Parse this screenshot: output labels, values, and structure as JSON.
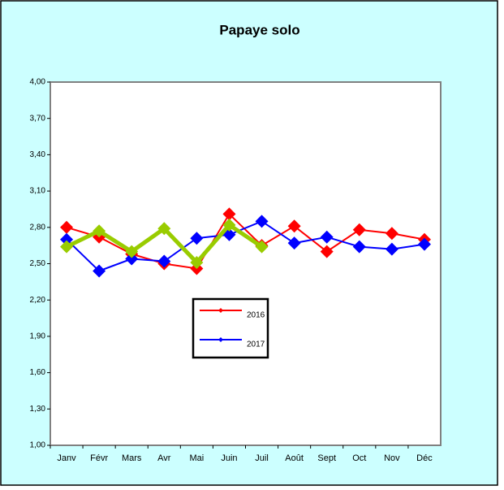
{
  "chart_data": {
    "type": "line",
    "title": "Papaye solo",
    "categories": [
      "Janv",
      "Févr",
      "Mars",
      "Avr",
      "Mai",
      "Juin",
      "Juil",
      "Août",
      "Sept",
      "Oct",
      "Nov",
      "Déc"
    ],
    "series": [
      {
        "name": "2016",
        "color": "#ff0000",
        "values": [
          2.8,
          2.72,
          2.58,
          2.5,
          2.46,
          2.91,
          2.65,
          2.81,
          2.6,
          2.78,
          2.75,
          2.7
        ]
      },
      {
        "name": "2017",
        "color": "#0000ff",
        "values": [
          2.7,
          2.44,
          2.54,
          2.52,
          2.71,
          2.74,
          2.85,
          2.67,
          2.72,
          2.64,
          2.62,
          2.66
        ]
      },
      {
        "color": "#99cc00",
        "values": [
          2.64,
          2.77,
          2.6,
          2.79,
          2.51,
          2.82,
          2.64,
          null,
          null,
          null,
          null,
          null
        ]
      }
    ],
    "ylim": [
      1.0,
      4.0
    ],
    "yticks": [
      {
        "value": 1.0,
        "label": "1,00"
      },
      {
        "value": 1.3,
        "label": "1,30"
      },
      {
        "value": 1.6,
        "label": "1,60"
      },
      {
        "value": 1.9,
        "label": "1,90"
      },
      {
        "value": 2.2,
        "label": "2,20"
      },
      {
        "value": 2.5,
        "label": "2,50"
      },
      {
        "value": 2.8,
        "label": "2,80"
      },
      {
        "value": 3.1,
        "label": "3,10"
      },
      {
        "value": 3.4,
        "label": "3,40"
      },
      {
        "value": 3.7,
        "label": "3,70"
      },
      {
        "value": 4.0,
        "label": "4,00"
      }
    ],
    "grid": false
  }
}
